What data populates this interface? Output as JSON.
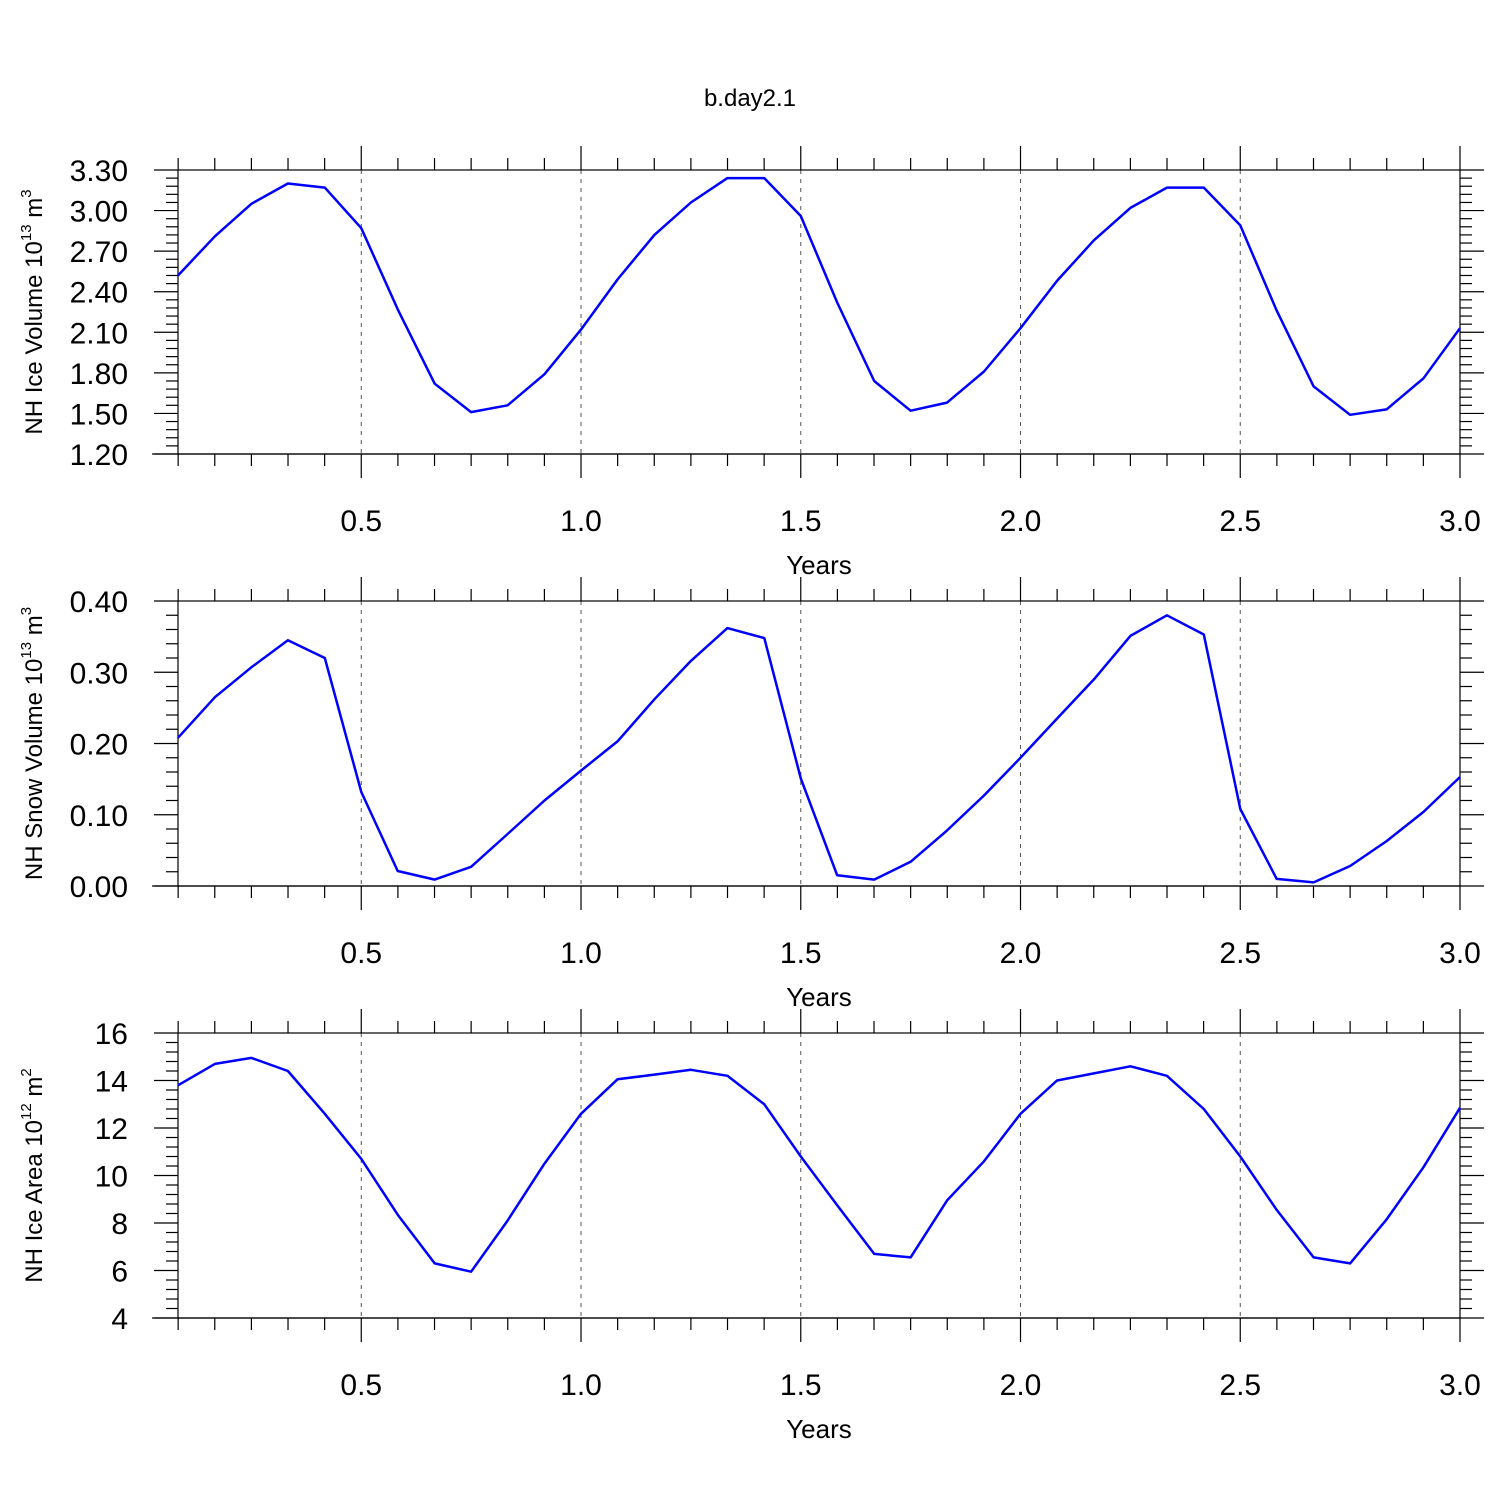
{
  "title": "b.day2.1",
  "chart_data": [
    {
      "type": "line",
      "ylabel": "NH Ice Volume 10",
      "ylabel_exponent": "13",
      "ylabel_unit": "m",
      "ylabel_unit_exponent": "3",
      "xlabel": "Years",
      "xlim": [
        0.083,
        3.0
      ],
      "ylim": [
        1.2,
        3.3
      ],
      "y_ticks": [
        1.2,
        1.5,
        1.8,
        2.1,
        2.4,
        2.7,
        3.0,
        3.3
      ],
      "y_tick_labels": [
        "1.20",
        "1.50",
        "1.80",
        "2.10",
        "2.40",
        "2.70",
        "3.00",
        "3.30"
      ],
      "x_ticks": [
        0.5,
        1.0,
        1.5,
        2.0,
        2.5,
        3.0
      ],
      "x_tick_labels": [
        "0.5",
        "1.0",
        "1.5",
        "2.0",
        "2.5",
        "3.0"
      ],
      "grid": "vertical dashed at major x ticks",
      "series": [
        {
          "color": "#0000ff",
          "x": [
            0.083,
            0.167,
            0.25,
            0.333,
            0.417,
            0.5,
            0.583,
            0.667,
            0.75,
            0.833,
            0.917,
            1.0,
            1.083,
            1.167,
            1.25,
            1.333,
            1.417,
            1.5,
            1.583,
            1.667,
            1.75,
            1.833,
            1.917,
            2.0,
            2.083,
            2.167,
            2.25,
            2.333,
            2.417,
            2.5,
            2.583,
            2.667,
            2.75,
            2.833,
            2.917,
            3.0
          ],
          "y": [
            2.52,
            2.81,
            3.05,
            3.2,
            3.17,
            2.87,
            2.27,
            1.72,
            1.51,
            1.56,
            1.79,
            2.12,
            2.49,
            2.82,
            3.06,
            3.24,
            3.24,
            2.96,
            2.32,
            1.74,
            1.52,
            1.58,
            1.81,
            2.13,
            2.48,
            2.78,
            3.02,
            3.17,
            3.17,
            2.89,
            2.26,
            1.7,
            1.49,
            1.53,
            1.76,
            2.13
          ]
        }
      ]
    },
    {
      "type": "line",
      "ylabel": "NH Snow Volume 10",
      "ylabel_exponent": "13",
      "ylabel_unit": "m",
      "ylabel_unit_exponent": "3",
      "xlabel": "Years",
      "xlim": [
        0.083,
        3.0
      ],
      "ylim": [
        0.0,
        0.4
      ],
      "y_ticks": [
        0.0,
        0.1,
        0.2,
        0.3,
        0.4
      ],
      "y_tick_labels": [
        "0.00",
        "0.10",
        "0.20",
        "0.30",
        "0.40"
      ],
      "x_ticks": [
        0.5,
        1.0,
        1.5,
        2.0,
        2.5,
        3.0
      ],
      "x_tick_labels": [
        "0.5",
        "1.0",
        "1.5",
        "2.0",
        "2.5",
        "3.0"
      ],
      "grid": "vertical dashed at major x ticks",
      "series": [
        {
          "color": "#0000ff",
          "x": [
            0.083,
            0.167,
            0.25,
            0.333,
            0.417,
            0.5,
            0.583,
            0.667,
            0.75,
            0.833,
            0.917,
            1.0,
            1.083,
            1.167,
            1.25,
            1.333,
            1.417,
            1.5,
            1.583,
            1.667,
            1.75,
            1.833,
            1.917,
            2.0,
            2.083,
            2.167,
            2.25,
            2.333,
            2.417,
            2.5,
            2.583,
            2.667,
            2.75,
            2.833,
            2.917,
            3.0
          ],
          "y": [
            0.208,
            0.265,
            0.307,
            0.345,
            0.32,
            0.132,
            0.021,
            0.009,
            0.027,
            0.073,
            0.12,
            0.162,
            0.203,
            0.262,
            0.316,
            0.362,
            0.348,
            0.151,
            0.015,
            0.009,
            0.034,
            0.078,
            0.127,
            0.18,
            0.235,
            0.29,
            0.351,
            0.38,
            0.353,
            0.108,
            0.01,
            0.005,
            0.028,
            0.063,
            0.104,
            0.153
          ]
        }
      ]
    },
    {
      "type": "line",
      "ylabel": "NH Ice Area 10",
      "ylabel_exponent": "12",
      "ylabel_unit": "m",
      "ylabel_unit_exponent": "2",
      "xlabel": "Years",
      "xlim": [
        0.083,
        3.0
      ],
      "ylim": [
        4,
        16
      ],
      "y_ticks": [
        4,
        6,
        8,
        10,
        12,
        14,
        16
      ],
      "y_tick_labels": [
        "4",
        "6",
        "8",
        "10",
        "12",
        "14",
        "16"
      ],
      "x_ticks": [
        0.5,
        1.0,
        1.5,
        2.0,
        2.5,
        3.0
      ],
      "x_tick_labels": [
        "0.5",
        "1.0",
        "1.5",
        "2.0",
        "2.5",
        "3.0"
      ],
      "grid": "vertical dashed at major x ticks",
      "series": [
        {
          "color": "#0000ff",
          "x": [
            0.083,
            0.167,
            0.25,
            0.333,
            0.417,
            0.5,
            0.583,
            0.667,
            0.75,
            0.833,
            0.917,
            1.0,
            1.083,
            1.167,
            1.25,
            1.333,
            1.417,
            1.5,
            1.583,
            1.667,
            1.75,
            1.833,
            1.917,
            2.0,
            2.083,
            2.167,
            2.25,
            2.333,
            2.417,
            2.5,
            2.583,
            2.667,
            2.75,
            2.833,
            2.917,
            3.0
          ],
          "y": [
            13.8,
            14.7,
            14.95,
            14.4,
            12.6,
            10.7,
            8.35,
            6.3,
            5.95,
            8.1,
            10.5,
            12.6,
            14.05,
            14.25,
            14.45,
            14.2,
            13.0,
            10.8,
            8.75,
            6.7,
            6.55,
            8.95,
            10.6,
            12.6,
            14.0,
            14.3,
            14.6,
            14.2,
            12.8,
            10.8,
            8.55,
            6.55,
            6.3,
            8.15,
            10.35,
            12.85
          ]
        }
      ]
    }
  ]
}
